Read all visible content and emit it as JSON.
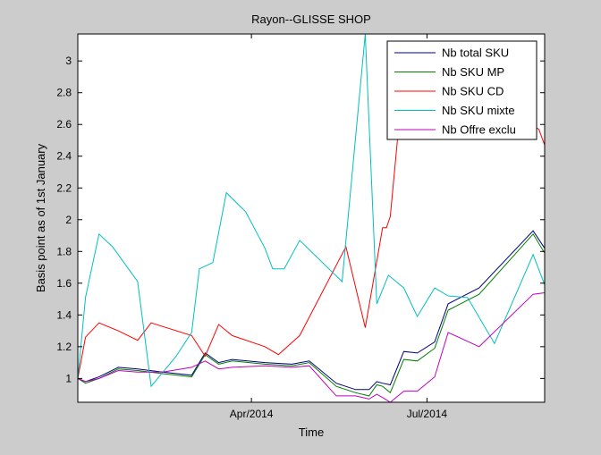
{
  "chart_data": {
    "type": "line",
    "title": "Rayon--GLISSE SHOP",
    "xlabel": "Time",
    "ylabel": "Basis point as of 1st January",
    "xlim": [
      "2014-01-01",
      "2014-08-31"
    ],
    "ylim": [
      0.85,
      3.17
    ],
    "xticks": [
      {
        "date": "2014-04-01",
        "label": "Apr/2014"
      },
      {
        "date": "2014-07-01",
        "label": "Jul/2014"
      }
    ],
    "yticks": [
      {
        "value": 1,
        "label": "1"
      },
      {
        "value": 1.2,
        "label": "1.2"
      },
      {
        "value": 1.4,
        "label": "1.4"
      },
      {
        "value": 1.6,
        "label": "1.6"
      },
      {
        "value": 1.8,
        "label": "1.8"
      },
      {
        "value": 2,
        "label": "2"
      },
      {
        "value": 2.2,
        "label": "2.2"
      },
      {
        "value": 2.4,
        "label": "2.4"
      },
      {
        "value": 2.6,
        "label": "2.6"
      },
      {
        "value": 2.8,
        "label": "2.8"
      },
      {
        "value": 3,
        "label": "3"
      }
    ],
    "grid": false,
    "legend_position": "top-right",
    "series": [
      {
        "name": "Nb total SKU",
        "color": "#00007f",
        "points": [
          [
            "2014-01-01",
            1.0
          ],
          [
            "2014-01-05",
            0.98
          ],
          [
            "2014-01-12",
            1.01
          ],
          [
            "2014-01-22",
            1.07
          ],
          [
            "2014-02-01",
            1.06
          ],
          [
            "2014-02-14",
            1.04
          ],
          [
            "2014-03-01",
            1.02
          ],
          [
            "2014-03-08",
            1.16
          ],
          [
            "2014-03-15",
            1.1
          ],
          [
            "2014-03-22",
            1.12
          ],
          [
            "2014-04-08",
            1.1
          ],
          [
            "2014-04-22",
            1.09
          ],
          [
            "2014-05-01",
            1.11
          ],
          [
            "2014-05-15",
            0.97
          ],
          [
            "2014-05-25",
            0.93
          ],
          [
            "2014-06-01",
            0.93
          ],
          [
            "2014-06-05",
            0.98
          ],
          [
            "2014-06-08",
            0.97
          ],
          [
            "2014-06-12",
            0.96
          ],
          [
            "2014-06-19",
            1.17
          ],
          [
            "2014-06-26",
            1.16
          ],
          [
            "2014-07-05",
            1.23
          ],
          [
            "2014-07-12",
            1.47
          ],
          [
            "2014-07-28",
            1.57
          ],
          [
            "2014-08-25",
            1.93
          ],
          [
            "2014-08-31",
            1.82
          ]
        ]
      },
      {
        "name": "Nb SKU MP",
        "color": "#007f00",
        "points": [
          [
            "2014-01-01",
            1.0
          ],
          [
            "2014-01-05",
            0.97
          ],
          [
            "2014-01-12",
            1.0
          ],
          [
            "2014-01-22",
            1.06
          ],
          [
            "2014-02-01",
            1.05
          ],
          [
            "2014-02-14",
            1.03
          ],
          [
            "2014-03-01",
            1.01
          ],
          [
            "2014-03-08",
            1.15
          ],
          [
            "2014-03-15",
            1.09
          ],
          [
            "2014-03-22",
            1.11
          ],
          [
            "2014-04-08",
            1.09
          ],
          [
            "2014-04-22",
            1.08
          ],
          [
            "2014-05-01",
            1.1
          ],
          [
            "2014-05-15",
            0.95
          ],
          [
            "2014-05-25",
            0.91
          ],
          [
            "2014-06-01",
            0.89
          ],
          [
            "2014-06-05",
            0.96
          ],
          [
            "2014-06-08",
            0.95
          ],
          [
            "2014-06-12",
            0.91
          ],
          [
            "2014-06-19",
            1.12
          ],
          [
            "2014-06-26",
            1.11
          ],
          [
            "2014-07-05",
            1.19
          ],
          [
            "2014-07-12",
            1.43
          ],
          [
            "2014-07-28",
            1.53
          ],
          [
            "2014-08-25",
            1.91
          ],
          [
            "2014-08-31",
            1.79
          ]
        ]
      },
      {
        "name": "Nb SKU CD",
        "color": "#ff0000",
        "points": [
          [
            "2014-01-01",
            1.0
          ],
          [
            "2014-01-05",
            1.26
          ],
          [
            "2014-01-12",
            1.35
          ],
          [
            "2014-01-22",
            1.3
          ],
          [
            "2014-02-01",
            1.24
          ],
          [
            "2014-02-08",
            1.35
          ],
          [
            "2014-03-01",
            1.27
          ],
          [
            "2014-03-08",
            1.14
          ],
          [
            "2014-03-15",
            1.34
          ],
          [
            "2014-03-22",
            1.27
          ],
          [
            "2014-04-08",
            1.2
          ],
          [
            "2014-04-15",
            1.15
          ],
          [
            "2014-04-26",
            1.27
          ],
          [
            "2014-05-20",
            1.83
          ],
          [
            "2014-05-30",
            1.32
          ],
          [
            "2014-06-08",
            1.95
          ],
          [
            "2014-06-10",
            1.95
          ],
          [
            "2014-06-12",
            2.02
          ],
          [
            "2014-06-19",
            2.93
          ],
          [
            "2014-06-23",
            2.93
          ],
          [
            "2014-06-26",
            2.92
          ],
          [
            "2014-07-12",
            2.92
          ],
          [
            "2014-08-28",
            2.57
          ],
          [
            "2014-08-31",
            2.47
          ]
        ]
      },
      {
        "name": "Nb SKU mixte",
        "color": "#00bfbf",
        "points": [
          [
            "2014-01-01",
            1.0
          ],
          [
            "2014-01-05",
            1.51
          ],
          [
            "2014-01-12",
            1.91
          ],
          [
            "2014-01-19",
            1.83
          ],
          [
            "2014-02-01",
            1.61
          ],
          [
            "2014-02-08",
            0.95
          ],
          [
            "2014-02-21",
            1.14
          ],
          [
            "2014-03-01",
            1.29
          ],
          [
            "2014-03-05",
            1.69
          ],
          [
            "2014-03-12",
            1.73
          ],
          [
            "2014-03-19",
            2.17
          ],
          [
            "2014-03-29",
            2.05
          ],
          [
            "2014-04-08",
            1.82
          ],
          [
            "2014-04-12",
            1.69
          ],
          [
            "2014-04-18",
            1.69
          ],
          [
            "2014-04-26",
            1.87
          ],
          [
            "2014-05-18",
            1.61
          ],
          [
            "2014-05-30",
            3.17
          ],
          [
            "2014-06-05",
            1.47
          ],
          [
            "2014-06-11",
            1.65
          ],
          [
            "2014-06-19",
            1.57
          ],
          [
            "2014-06-26",
            1.39
          ],
          [
            "2014-07-05",
            1.57
          ],
          [
            "2014-07-12",
            1.52
          ],
          [
            "2014-07-22",
            1.51
          ],
          [
            "2014-08-05",
            1.22
          ],
          [
            "2014-08-25",
            1.78
          ],
          [
            "2014-08-31",
            1.59
          ]
        ]
      },
      {
        "name": "Nb Offre exclu",
        "color": "#bf00bf",
        "points": [
          [
            "2014-01-01",
            1.0
          ],
          [
            "2014-01-05",
            0.98
          ],
          [
            "2014-01-12",
            1.0
          ],
          [
            "2014-01-22",
            1.05
          ],
          [
            "2014-02-01",
            1.04
          ],
          [
            "2014-02-14",
            1.04
          ],
          [
            "2014-03-01",
            1.07
          ],
          [
            "2014-03-08",
            1.11
          ],
          [
            "2014-03-15",
            1.06
          ],
          [
            "2014-03-22",
            1.07
          ],
          [
            "2014-04-08",
            1.08
          ],
          [
            "2014-04-22",
            1.07
          ],
          [
            "2014-05-01",
            1.08
          ],
          [
            "2014-05-15",
            0.89
          ],
          [
            "2014-05-25",
            0.89
          ],
          [
            "2014-06-01",
            0.87
          ],
          [
            "2014-06-05",
            0.9
          ],
          [
            "2014-06-08",
            0.88
          ],
          [
            "2014-06-12",
            0.85
          ],
          [
            "2014-06-19",
            0.92
          ],
          [
            "2014-06-26",
            0.92
          ],
          [
            "2014-07-05",
            1.01
          ],
          [
            "2014-07-12",
            1.29
          ],
          [
            "2014-07-28",
            1.2
          ],
          [
            "2014-08-25",
            1.53
          ],
          [
            "2014-08-31",
            1.54
          ]
        ]
      }
    ]
  }
}
